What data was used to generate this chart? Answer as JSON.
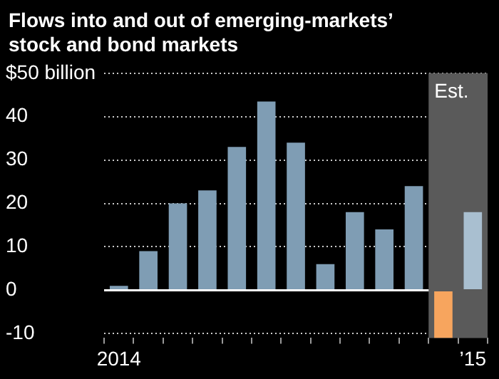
{
  "chart_data": {
    "type": "bar",
    "title": "Flows into and out of emerging-markets’ stock and bond markets",
    "categories": [
      "2014",
      null,
      null,
      null,
      null,
      null,
      null,
      null,
      null,
      null,
      null,
      null,
      "’15"
    ],
    "values": [
      1,
      9,
      20,
      23,
      33,
      43.5,
      34,
      6,
      18,
      14,
      24,
      -11,
      18
    ],
    "colors": [
      "#7f9db4",
      "#7f9db4",
      "#7f9db4",
      "#7f9db4",
      "#7f9db4",
      "#7f9db4",
      "#7f9db4",
      "#7f9db4",
      "#7f9db4",
      "#7f9db4",
      "#7f9db4",
      "#f7a55e",
      "#a9bfd0"
    ],
    "ylim": [
      -11,
      50
    ],
    "yticks": [
      -10,
      0,
      10,
      20,
      30,
      40,
      {
        "value": 50,
        "label": "$50 billion"
      }
    ],
    "grid": "y",
    "annotations": [
      "Est."
    ],
    "legend": false
  }
}
